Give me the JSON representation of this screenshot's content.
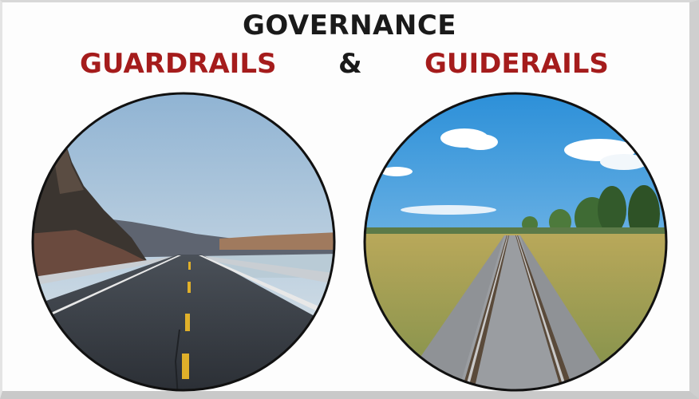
{
  "heading": {
    "title": "GOVERNANCE",
    "left_label": "GUARDRAILS",
    "ampersand": "&",
    "right_label": "GUIDERAILS"
  },
  "colors": {
    "title": "#1a1a1a",
    "labels": "#a51c1c"
  },
  "images": [
    {
      "name": "highway-with-guardrails",
      "icon": "road-photo"
    },
    {
      "name": "railway-track",
      "icon": "rail-photo"
    }
  ]
}
